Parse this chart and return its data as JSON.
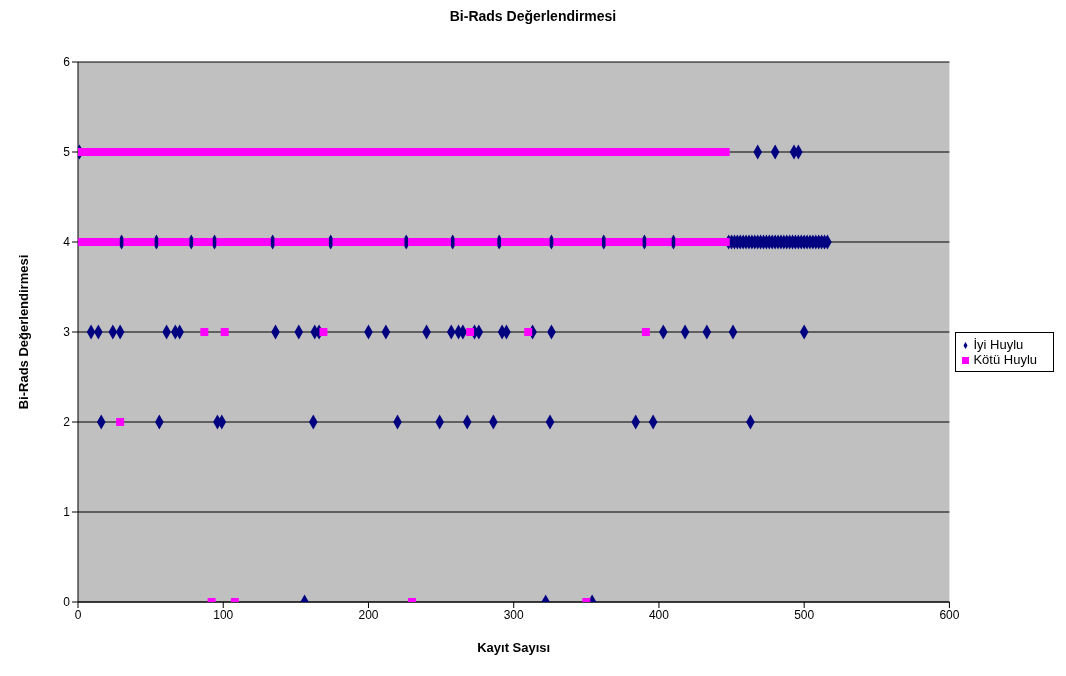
{
  "chart_data": {
    "type": "scatter",
    "title": "Bi-Rads Değerlendirmesi",
    "xlabel": "Kayıt Sayısı",
    "ylabel": "Bi-Rads Değerlendirmesi",
    "xlim": [
      0,
      600
    ],
    "xticks": [
      0,
      100,
      200,
      300,
      400,
      500,
      600
    ],
    "ylim": [
      0,
      6
    ],
    "yticks": [
      0,
      1,
      2,
      3,
      4,
      5,
      6
    ],
    "grid": "y",
    "legend": "right",
    "series": [
      {
        "name": "İyi Huylu",
        "color": "#000080",
        "marker": "diamond",
        "x": [
          1,
          468,
          480,
          493,
          496,
          30,
          54,
          78,
          94,
          134,
          174,
          226,
          258,
          290,
          326,
          362,
          390,
          410,
          448,
          450,
          452,
          454,
          456,
          458,
          460,
          462,
          464,
          466,
          468,
          470,
          472,
          474,
          476,
          478,
          480,
          482,
          484,
          486,
          488,
          490,
          492,
          494,
          496,
          498,
          500,
          502,
          504,
          506,
          508,
          510,
          512,
          514,
          516,
          9,
          14,
          24,
          29,
          61,
          67,
          70,
          136,
          152,
          163,
          166,
          200,
          212,
          240,
          257,
          262,
          265,
          273,
          276,
          292,
          295,
          313,
          326,
          403,
          418,
          433,
          451,
          500,
          16,
          56,
          96,
          99,
          162,
          220,
          249,
          268,
          286,
          325,
          384,
          396,
          463,
          156,
          322,
          354
        ],
        "values": [
          5,
          5,
          5,
          5,
          5,
          4,
          4,
          4,
          4,
          4,
          4,
          4,
          4,
          4,
          4,
          4,
          4,
          4,
          4,
          4,
          4,
          4,
          4,
          4,
          4,
          4,
          4,
          4,
          4,
          4,
          4,
          4,
          4,
          4,
          4,
          4,
          4,
          4,
          4,
          4,
          4,
          4,
          4,
          4,
          4,
          4,
          4,
          4,
          4,
          4,
          4,
          4,
          4,
          3,
          3,
          3,
          3,
          3,
          3,
          3,
          3,
          3,
          3,
          3,
          3,
          3,
          3,
          3,
          3,
          3,
          3,
          3,
          3,
          3,
          3,
          3,
          3,
          3,
          3,
          3,
          3,
          2,
          2,
          2,
          2,
          2,
          2,
          2,
          2,
          2,
          2,
          2,
          2,
          2,
          0,
          0,
          0
        ]
      },
      {
        "name": "Kötü Huylu",
        "color": "#ff00ff",
        "marker": "square",
        "x": [
          0,
          4,
          8,
          12,
          16,
          20,
          24,
          28,
          32,
          36,
          40,
          44,
          48,
          52,
          56,
          60,
          64,
          68,
          72,
          76,
          80,
          84,
          88,
          92,
          96,
          100,
          104,
          108,
          112,
          116,
          120,
          124,
          128,
          132,
          136,
          140,
          144,
          148,
          152,
          156,
          160,
          164,
          168,
          172,
          176,
          180,
          184,
          188,
          192,
          196,
          200,
          204,
          208,
          212,
          216,
          220,
          224,
          228,
          232,
          236,
          240,
          244,
          248,
          252,
          256,
          260,
          264,
          268,
          272,
          276,
          280,
          284,
          288,
          292,
          296,
          300,
          304,
          308,
          312,
          316,
          320,
          324,
          328,
          332,
          336,
          340,
          344,
          348,
          352,
          356,
          360,
          364,
          368,
          372,
          376,
          380,
          384,
          388,
          392,
          396,
          400,
          404,
          408,
          412,
          416,
          420,
          424,
          428,
          432,
          436,
          440,
          444,
          446,
          2,
          6,
          10,
          14,
          18,
          22,
          26,
          34,
          38,
          42,
          46,
          50,
          58,
          62,
          66,
          70,
          74,
          82,
          86,
          90,
          98,
          102,
          106,
          110,
          114,
          118,
          122,
          126,
          130,
          138,
          142,
          146,
          150,
          154,
          158,
          162,
          166,
          170,
          178,
          182,
          186,
          190,
          194,
          198,
          202,
          206,
          210,
          214,
          218,
          222,
          230,
          234,
          238,
          242,
          246,
          250,
          254,
          262,
          266,
          270,
          274,
          278,
          282,
          286,
          294,
          298,
          302,
          306,
          310,
          314,
          318,
          322,
          330,
          334,
          338,
          342,
          346,
          350,
          354,
          358,
          366,
          370,
          374,
          378,
          382,
          386,
          394,
          398,
          402,
          406,
          414,
          418,
          422,
          426,
          430,
          434,
          438,
          442,
          446,
          87,
          101,
          169,
          270,
          310,
          391,
          29,
          92,
          108,
          230,
          350
        ],
        "values": [
          5,
          5,
          5,
          5,
          5,
          5,
          5,
          5,
          5,
          5,
          5,
          5,
          5,
          5,
          5,
          5,
          5,
          5,
          5,
          5,
          5,
          5,
          5,
          5,
          5,
          5,
          5,
          5,
          5,
          5,
          5,
          5,
          5,
          5,
          5,
          5,
          5,
          5,
          5,
          5,
          5,
          5,
          5,
          5,
          5,
          5,
          5,
          5,
          5,
          5,
          5,
          5,
          5,
          5,
          5,
          5,
          5,
          5,
          5,
          5,
          5,
          5,
          5,
          5,
          5,
          5,
          5,
          5,
          5,
          5,
          5,
          5,
          5,
          5,
          5,
          5,
          5,
          5,
          5,
          5,
          5,
          5,
          5,
          5,
          5,
          5,
          5,
          5,
          5,
          5,
          5,
          5,
          5,
          5,
          5,
          5,
          5,
          5,
          5,
          5,
          5,
          5,
          5,
          5,
          5,
          5,
          5,
          5,
          5,
          5,
          5,
          5,
          5,
          4,
          4,
          4,
          4,
          4,
          4,
          4,
          4,
          4,
          4,
          4,
          4,
          4,
          4,
          4,
          4,
          4,
          4,
          4,
          4,
          4,
          4,
          4,
          4,
          4,
          4,
          4,
          4,
          4,
          4,
          4,
          4,
          4,
          4,
          4,
          4,
          4,
          4,
          4,
          4,
          4,
          4,
          4,
          4,
          4,
          4,
          4,
          4,
          4,
          4,
          4,
          4,
          4,
          4,
          4,
          4,
          4,
          4,
          4,
          4,
          4,
          4,
          4,
          4,
          4,
          4,
          4,
          4,
          4,
          4,
          4,
          4,
          4,
          4,
          4,
          4,
          4,
          4,
          4,
          4,
          4,
          4,
          4,
          4,
          4,
          4,
          4,
          4,
          4,
          4,
          4,
          4,
          4,
          4,
          4,
          4,
          4,
          4,
          4,
          3,
          3,
          3,
          3,
          3,
          3,
          2,
          0,
          0,
          0,
          0
        ]
      }
    ]
  }
}
